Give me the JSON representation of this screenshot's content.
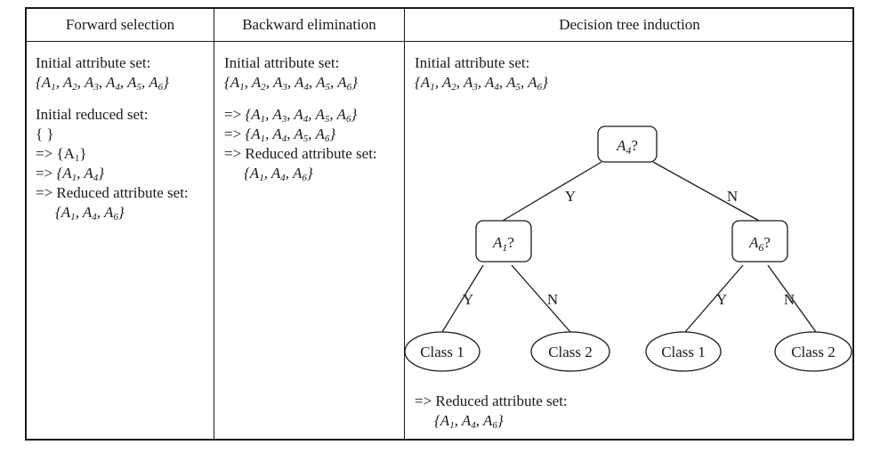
{
  "headers": {
    "forward": "Forward selection",
    "backward": "Backward elimination",
    "tree": "Decision tree induction"
  },
  "forward": {
    "initial_label": "Initial attribute set:",
    "initial_set": [
      "A1",
      "A2",
      "A3",
      "A4",
      "A5",
      "A6"
    ],
    "reduced_label": "Initial reduced set:",
    "empty_set": "{ }",
    "arrow": "=>",
    "step1": [
      "A1"
    ],
    "step2": [
      "A1",
      "A4"
    ],
    "final_label": "=> Reduced attribute set:",
    "final_set": [
      "A1",
      "A4",
      "A6"
    ]
  },
  "backward": {
    "initial_label": "Initial attribute set:",
    "initial_set": [
      "A1",
      "A2",
      "A3",
      "A4",
      "A5",
      "A6"
    ],
    "arrow": "=>",
    "step1": [
      "A1",
      "A3",
      "A4",
      "A5",
      "A6"
    ],
    "step2": [
      "A1",
      "A4",
      "A5",
      "A6"
    ],
    "final_label": "=> Reduced attribute set:",
    "final_set": [
      "A1",
      "A4",
      "A6"
    ]
  },
  "tree": {
    "initial_label": "Initial attribute set:",
    "initial_set": [
      "A1",
      "A2",
      "A3",
      "A4",
      "A5",
      "A6"
    ],
    "root": "A4?",
    "left": "A1?",
    "right": "A6?",
    "yes": "Y",
    "no": "N",
    "leaves": [
      "Class 1",
      "Class 2",
      "Class 1",
      "Class 2"
    ],
    "final_label": "=> Reduced attribute set:",
    "final_set": [
      "A1",
      "A4",
      "A6"
    ]
  }
}
